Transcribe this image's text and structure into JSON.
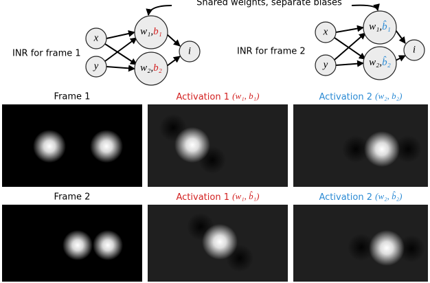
{
  "header": "Shared weights, separate biases",
  "networks": [
    {
      "label": "INR for frame 1",
      "nodes": {
        "x": "x",
        "y": "y",
        "n1": {
          "w": "w₁,",
          "b": "b₁"
        },
        "n2": {
          "w": "w₂,",
          "b": "b₂"
        },
        "out": "i"
      }
    },
    {
      "label": "INR for frame 2",
      "nodes": {
        "x": "x",
        "y": "y",
        "n1": {
          "w": "w₁,",
          "b": "b̂₁"
        },
        "n2": {
          "w": "w₂,",
          "b": "b̂₂"
        },
        "out": "i"
      }
    }
  ],
  "panels": [
    [
      {
        "text": "Frame 1"
      },
      {
        "text": "Activation 1",
        "params": "(w₁, b₁)"
      },
      {
        "text": "Activation 2",
        "params": "(w₂, b₂)"
      }
    ],
    [
      {
        "text": "Frame 2"
      },
      {
        "text": "Activation 1",
        "params": "(w₁, b̂₁)"
      },
      {
        "text": "Activation 2",
        "params": "(w₂, b̂₂)"
      }
    ]
  ]
}
